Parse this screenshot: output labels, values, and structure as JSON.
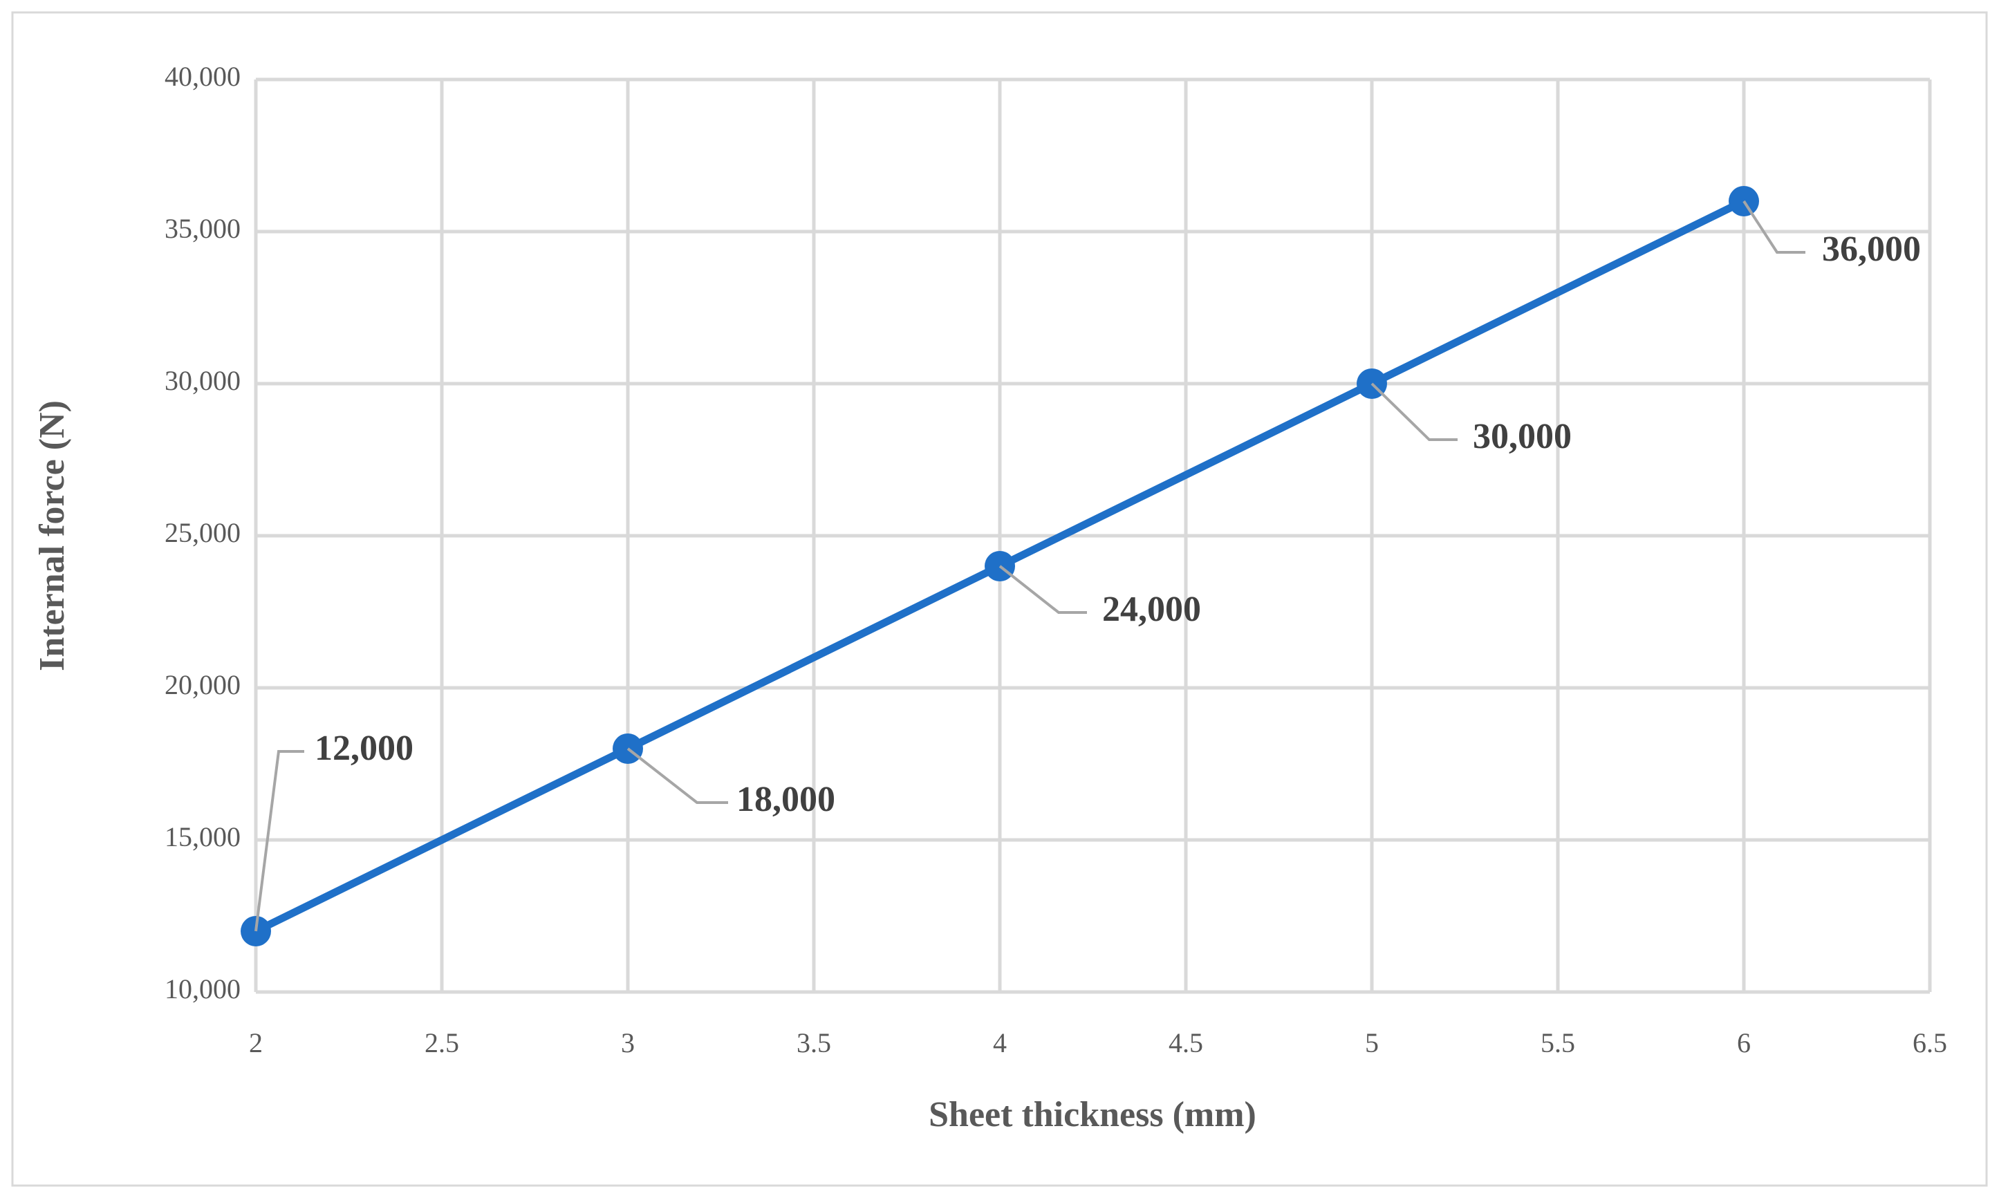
{
  "chart_data": {
    "type": "line",
    "x_label": "Sheet thickness (mm)",
    "y_label": "Internal force (N)",
    "series": [
      {
        "name": "Internal force",
        "color": "#1f70c8",
        "x": [
          2,
          3,
          4,
          5,
          6
        ],
        "values": [
          12000,
          18000,
          24000,
          30000,
          36000
        ],
        "value_labels": [
          "12,000",
          "18,000",
          "24,000",
          "30,000",
          "36,000"
        ]
      }
    ],
    "xlim": [
      2,
      6.5
    ],
    "xticks": [
      2,
      2.5,
      3,
      3.5,
      4,
      4.5,
      5,
      5.5,
      6,
      6.5
    ],
    "ylim": [
      10000,
      40000
    ],
    "yticks": [
      {
        "value": 10000,
        "label": "10,000"
      },
      {
        "value": 15000,
        "label": "15,000"
      },
      {
        "value": 20000,
        "label": "20,000"
      },
      {
        "value": 25000,
        "label": "25,000"
      },
      {
        "value": 30000,
        "label": "30,000"
      },
      {
        "value": 35000,
        "label": "35,000"
      },
      {
        "value": 40000,
        "label": "40,000"
      }
    ],
    "grid": true
  }
}
